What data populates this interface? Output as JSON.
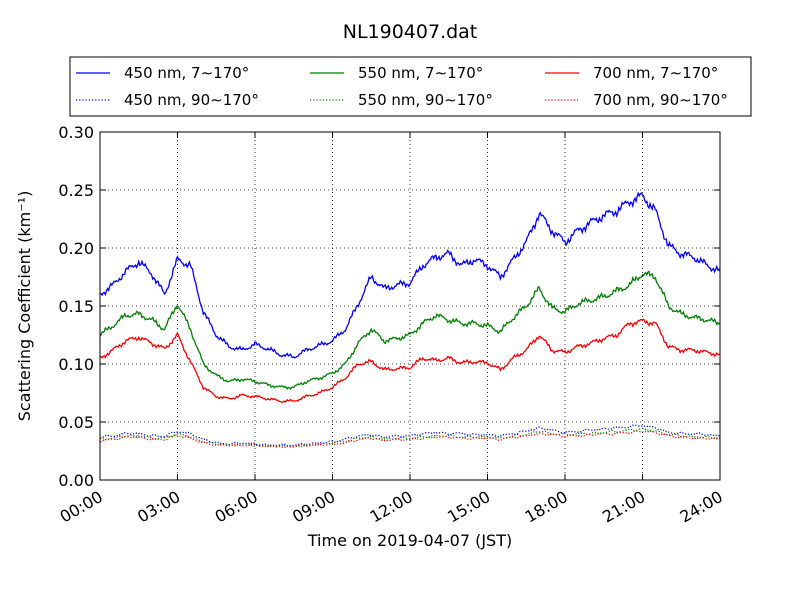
{
  "chart_data": {
    "type": "line",
    "title": "NL190407.dat",
    "xlabel": "Time on 2019-04-07 (JST)",
    "ylabel": "Scattering Coefficient (km⁻¹)",
    "xlim": [
      0,
      24
    ],
    "ylim": [
      0.0,
      0.3
    ],
    "grid": true,
    "legend_position": "top",
    "x_ticks": [
      0,
      3,
      6,
      9,
      12,
      15,
      18,
      21,
      24
    ],
    "x_tick_labels": [
      "00:00",
      "03:00",
      "06:00",
      "09:00",
      "12:00",
      "15:00",
      "18:00",
      "21:00",
      "24:00"
    ],
    "y_ticks": [
      0.0,
      0.05,
      0.1,
      0.15,
      0.2,
      0.25,
      0.3
    ],
    "y_tick_labels": [
      "0.00",
      "0.05",
      "0.10",
      "0.15",
      "0.20",
      "0.25",
      "0.30"
    ],
    "x": [
      0,
      0.5,
      1,
      1.5,
      2,
      2.5,
      3,
      3.5,
      4,
      4.5,
      5,
      5.5,
      6,
      6.5,
      7,
      7.5,
      8,
      8.5,
      9,
      9.5,
      10,
      10.5,
      11,
      11.5,
      12,
      12.5,
      13,
      13.5,
      14,
      14.5,
      15,
      15.5,
      16,
      16.5,
      17,
      17.5,
      18,
      18.5,
      19,
      19.5,
      20,
      20.5,
      21,
      21.5,
      22,
      22.5,
      23,
      23.5,
      24
    ],
    "series": [
      {
        "name": "450 nm, 7∼170°",
        "color": "#0000ff",
        "style": "solid",
        "values": [
          0.16,
          0.168,
          0.18,
          0.188,
          0.178,
          0.16,
          0.19,
          0.185,
          0.145,
          0.125,
          0.115,
          0.112,
          0.117,
          0.113,
          0.108,
          0.106,
          0.112,
          0.116,
          0.12,
          0.13,
          0.152,
          0.175,
          0.165,
          0.168,
          0.17,
          0.185,
          0.192,
          0.195,
          0.185,
          0.19,
          0.185,
          0.175,
          0.19,
          0.205,
          0.23,
          0.215,
          0.205,
          0.215,
          0.222,
          0.228,
          0.232,
          0.24,
          0.245,
          0.232,
          0.202,
          0.195,
          0.192,
          0.185,
          0.18
        ]
      },
      {
        "name": "550 nm, 7∼170°",
        "color": "#008000",
        "style": "solid",
        "values": [
          0.125,
          0.133,
          0.142,
          0.143,
          0.138,
          0.13,
          0.152,
          0.13,
          0.1,
          0.09,
          0.085,
          0.087,
          0.085,
          0.082,
          0.08,
          0.08,
          0.085,
          0.088,
          0.092,
          0.1,
          0.118,
          0.13,
          0.12,
          0.122,
          0.125,
          0.135,
          0.142,
          0.138,
          0.135,
          0.135,
          0.133,
          0.128,
          0.14,
          0.15,
          0.165,
          0.148,
          0.145,
          0.152,
          0.155,
          0.158,
          0.163,
          0.168,
          0.178,
          0.175,
          0.15,
          0.143,
          0.14,
          0.138,
          0.135
        ]
      },
      {
        "name": "700 nm, 7∼170°",
        "color": "#ff0000",
        "style": "solid",
        "values": [
          0.105,
          0.112,
          0.12,
          0.123,
          0.118,
          0.113,
          0.125,
          0.102,
          0.08,
          0.072,
          0.07,
          0.073,
          0.072,
          0.07,
          0.068,
          0.068,
          0.072,
          0.075,
          0.08,
          0.088,
          0.1,
          0.102,
          0.095,
          0.096,
          0.097,
          0.105,
          0.103,
          0.105,
          0.101,
          0.102,
          0.101,
          0.095,
          0.105,
          0.112,
          0.125,
          0.112,
          0.11,
          0.115,
          0.118,
          0.122,
          0.125,
          0.135,
          0.137,
          0.135,
          0.115,
          0.112,
          0.112,
          0.11,
          0.108
        ]
      },
      {
        "name": "450 nm, 90∼170°",
        "color": "#0000ff",
        "style": "dotted",
        "values": [
          0.037,
          0.038,
          0.04,
          0.04,
          0.038,
          0.038,
          0.042,
          0.04,
          0.035,
          0.032,
          0.031,
          0.032,
          0.031,
          0.03,
          0.03,
          0.03,
          0.031,
          0.032,
          0.033,
          0.035,
          0.038,
          0.039,
          0.037,
          0.038,
          0.038,
          0.04,
          0.041,
          0.04,
          0.04,
          0.039,
          0.039,
          0.038,
          0.04,
          0.042,
          0.045,
          0.043,
          0.041,
          0.042,
          0.043,
          0.044,
          0.045,
          0.046,
          0.047,
          0.045,
          0.041,
          0.04,
          0.04,
          0.039,
          0.038
        ]
      },
      {
        "name": "550 nm, 90∼170°",
        "color": "#008000",
        "style": "dotted",
        "values": [
          0.035,
          0.036,
          0.038,
          0.038,
          0.036,
          0.036,
          0.04,
          0.037,
          0.033,
          0.031,
          0.03,
          0.031,
          0.03,
          0.029,
          0.029,
          0.029,
          0.03,
          0.031,
          0.032,
          0.033,
          0.036,
          0.037,
          0.035,
          0.036,
          0.036,
          0.037,
          0.038,
          0.038,
          0.037,
          0.037,
          0.037,
          0.036,
          0.038,
          0.039,
          0.042,
          0.04,
          0.039,
          0.04,
          0.04,
          0.041,
          0.042,
          0.043,
          0.044,
          0.042,
          0.039,
          0.038,
          0.037,
          0.037,
          0.036
        ]
      },
      {
        "name": "700 nm, 90∼170°",
        "color": "#ff0000",
        "style": "dotted",
        "values": [
          0.034,
          0.035,
          0.037,
          0.037,
          0.035,
          0.035,
          0.039,
          0.036,
          0.032,
          0.03,
          0.03,
          0.03,
          0.03,
          0.029,
          0.029,
          0.029,
          0.03,
          0.03,
          0.031,
          0.032,
          0.035,
          0.036,
          0.034,
          0.035,
          0.035,
          0.036,
          0.037,
          0.037,
          0.036,
          0.036,
          0.036,
          0.035,
          0.037,
          0.038,
          0.04,
          0.039,
          0.038,
          0.038,
          0.039,
          0.04,
          0.04,
          0.041,
          0.042,
          0.041,
          0.038,
          0.037,
          0.036,
          0.036,
          0.035
        ]
      }
    ]
  }
}
